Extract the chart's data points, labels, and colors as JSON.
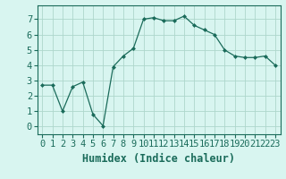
{
  "x": [
    0,
    1,
    2,
    3,
    4,
    5,
    6,
    7,
    8,
    9,
    10,
    11,
    12,
    13,
    14,
    15,
    16,
    17,
    18,
    19,
    20,
    21,
    22,
    23
  ],
  "y": [
    2.7,
    2.7,
    1.0,
    2.6,
    2.9,
    0.8,
    0.05,
    3.9,
    4.6,
    5.1,
    7.0,
    7.1,
    6.9,
    6.9,
    7.2,
    6.6,
    6.3,
    6.0,
    5.0,
    4.6,
    4.5,
    4.5,
    4.6,
    4.0
  ],
  "line_color": "#1a6b5a",
  "marker": "D",
  "marker_size": 2.0,
  "background_color": "#d8f5f0",
  "grid_color": "#aed6cc",
  "xlabel": "Humidex (Indice chaleur)",
  "xlim": [
    -0.5,
    23.5
  ],
  "ylim": [
    -0.5,
    7.9
  ],
  "xtick_labels": [
    "0",
    "1",
    "2",
    "3",
    "4",
    "5",
    "6",
    "7",
    "8",
    "9",
    "10",
    "11",
    "12",
    "13",
    "14",
    "15",
    "16",
    "17",
    "18",
    "19",
    "20",
    "21",
    "22",
    "23"
  ],
  "ytick_values": [
    0,
    1,
    2,
    3,
    4,
    5,
    6,
    7
  ],
  "figsize": [
    3.2,
    2.0
  ],
  "dpi": 100,
  "xlabel_fontsize": 8.5,
  "tick_fontsize": 7.5,
  "label_color": "#1a6b5a",
  "spine_color": "#1a6b5a"
}
